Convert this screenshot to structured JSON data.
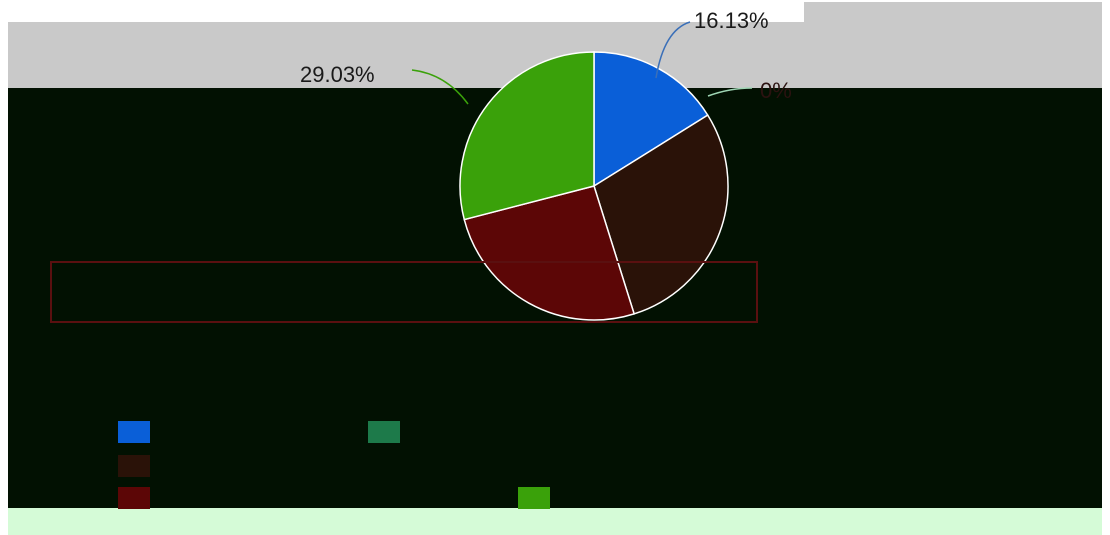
{
  "chart_data": {
    "type": "pie",
    "title": "",
    "slices": [
      {
        "label": "",
        "value": 16.13,
        "display": "16.13%",
        "color": "#0a5fd8"
      },
      {
        "label": "",
        "value": 0,
        "display": "0%",
        "color": "#1d7a4a"
      },
      {
        "label": "",
        "value": 29.03,
        "display": "",
        "color": "#2a1208"
      },
      {
        "label": "",
        "value": 25.81,
        "display": "",
        "color": "#5c0606"
      },
      {
        "label": "",
        "value": 29.03,
        "display": "29.03%",
        "color": "#3aa10a"
      }
    ],
    "legend_position": "bottom"
  },
  "colors": {
    "band_top": "#c9c9c9",
    "band_dark": "#021102",
    "band_bottom": "#d5fbd7",
    "leader_line": "#3a6fb8"
  }
}
